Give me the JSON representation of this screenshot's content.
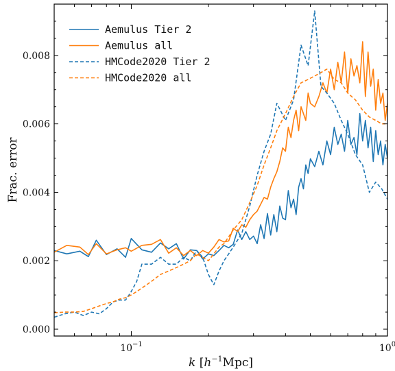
{
  "colors": {
    "blue": "#1f77b4",
    "orange": "#ff7f0e",
    "axis": "#000000"
  },
  "chart_data": {
    "type": "line",
    "title": "",
    "xlabel": "k [h^-1 Mpc]",
    "xlabel_parts": {
      "k": "k",
      "open": " [",
      "h": "h",
      "exp": "−1",
      "unit": "Mpc]"
    },
    "ylabel": "Frac. error",
    "xscale": "log",
    "xlim": [
      0.05,
      1.0
    ],
    "ylim": [
      -0.0002,
      0.0095
    ],
    "xtick_labels": [
      {
        "value": 0.1,
        "base": "10",
        "exp": "−1"
      },
      {
        "value": 1.0,
        "base": "10",
        "exp": "0"
      }
    ],
    "yticks": [
      0.0,
      0.002,
      0.004,
      0.006,
      0.008
    ],
    "ytick_labels": [
      "0.000",
      "0.002",
      "0.004",
      "0.006",
      "0.008"
    ],
    "legend_position": "top-left",
    "series": [
      {
        "name": "Aemulus Tier 2",
        "color": "#1f77b4",
        "dash": "solid",
        "x": [
          0.05,
          0.056,
          0.063,
          0.068,
          0.073,
          0.08,
          0.088,
          0.095,
          0.1,
          0.11,
          0.12,
          0.13,
          0.14,
          0.15,
          0.16,
          0.17,
          0.18,
          0.19,
          0.2,
          0.21,
          0.22,
          0.23,
          0.24,
          0.25,
          0.26,
          0.27,
          0.28,
          0.29,
          0.3,
          0.31,
          0.32,
          0.33,
          0.34,
          0.35,
          0.36,
          0.37,
          0.38,
          0.39,
          0.4,
          0.41,
          0.42,
          0.43,
          0.44,
          0.45,
          0.46,
          0.47,
          0.48,
          0.49,
          0.5,
          0.52,
          0.54,
          0.56,
          0.58,
          0.6,
          0.62,
          0.64,
          0.66,
          0.68,
          0.7,
          0.72,
          0.74,
          0.76,
          0.78,
          0.8,
          0.82,
          0.84,
          0.86,
          0.88,
          0.9,
          0.92,
          0.94,
          0.96,
          0.98,
          1.0
        ],
        "y": [
          0.0023,
          0.0022,
          0.00228,
          0.00212,
          0.0026,
          0.00218,
          0.00235,
          0.0021,
          0.00265,
          0.00232,
          0.00225,
          0.00252,
          0.00235,
          0.0025,
          0.00205,
          0.00232,
          0.0023,
          0.00205,
          0.0022,
          0.00215,
          0.0023,
          0.00245,
          0.00238,
          0.00248,
          0.0029,
          0.00262,
          0.00285,
          0.00262,
          0.00272,
          0.0025,
          0.00305,
          0.00265,
          0.00338,
          0.00275,
          0.00335,
          0.00285,
          0.0036,
          0.00325,
          0.0032,
          0.00405,
          0.00355,
          0.0038,
          0.00335,
          0.00415,
          0.0044,
          0.0041,
          0.0048,
          0.00455,
          0.00498,
          0.00475,
          0.0052,
          0.0048,
          0.0055,
          0.0051,
          0.0059,
          0.0054,
          0.0057,
          0.0052,
          0.0061,
          0.0054,
          0.0056,
          0.0051,
          0.0063,
          0.0055,
          0.0061,
          0.0053,
          0.0059,
          0.0049,
          0.0058,
          0.0051,
          0.0055,
          0.0048,
          0.0054,
          0.005
        ]
      },
      {
        "name": "Aemulus all",
        "color": "#ff7f0e",
        "dash": "solid",
        "x": [
          0.05,
          0.056,
          0.063,
          0.068,
          0.073,
          0.08,
          0.088,
          0.095,
          0.1,
          0.11,
          0.12,
          0.13,
          0.14,
          0.15,
          0.16,
          0.17,
          0.18,
          0.19,
          0.2,
          0.21,
          0.22,
          0.23,
          0.24,
          0.25,
          0.26,
          0.27,
          0.28,
          0.29,
          0.3,
          0.31,
          0.32,
          0.33,
          0.34,
          0.35,
          0.36,
          0.37,
          0.38,
          0.39,
          0.4,
          0.41,
          0.42,
          0.43,
          0.44,
          0.45,
          0.46,
          0.47,
          0.48,
          0.49,
          0.5,
          0.52,
          0.54,
          0.56,
          0.58,
          0.6,
          0.62,
          0.64,
          0.66,
          0.68,
          0.7,
          0.72,
          0.74,
          0.76,
          0.78,
          0.8,
          0.82,
          0.84,
          0.86,
          0.88,
          0.9,
          0.92,
          0.94,
          0.96,
          0.98,
          1.0
        ],
        "y": [
          0.00225,
          0.00245,
          0.0024,
          0.00218,
          0.0025,
          0.0022,
          0.00232,
          0.00238,
          0.00228,
          0.00245,
          0.00248,
          0.00262,
          0.00222,
          0.00238,
          0.00215,
          0.0023,
          0.00215,
          0.0023,
          0.00222,
          0.0024,
          0.00262,
          0.00255,
          0.00258,
          0.00295,
          0.00285,
          0.00305,
          0.00298,
          0.0032,
          0.00335,
          0.00345,
          0.00365,
          0.00385,
          0.0038,
          0.00415,
          0.0044,
          0.0046,
          0.0049,
          0.0053,
          0.0052,
          0.0059,
          0.0056,
          0.0061,
          0.0064,
          0.0058,
          0.0065,
          0.0063,
          0.0061,
          0.0069,
          0.0066,
          0.0065,
          0.0068,
          0.0072,
          0.0069,
          0.0076,
          0.007,
          0.0078,
          0.0072,
          0.0081,
          0.0069,
          0.0079,
          0.0074,
          0.0077,
          0.0072,
          0.0084,
          0.0068,
          0.0081,
          0.0071,
          0.0076,
          0.0064,
          0.0073,
          0.0066,
          0.0069,
          0.0061,
          0.0066
        ]
      },
      {
        "name": "HMCode2020 Tier 2",
        "color": "#1f77b4",
        "dash": "dashed",
        "x": [
          0.05,
          0.055,
          0.06,
          0.065,
          0.07,
          0.075,
          0.08,
          0.085,
          0.09,
          0.095,
          0.1,
          0.105,
          0.11,
          0.12,
          0.13,
          0.14,
          0.15,
          0.16,
          0.17,
          0.18,
          0.19,
          0.2,
          0.21,
          0.22,
          0.23,
          0.24,
          0.25,
          0.27,
          0.29,
          0.31,
          0.33,
          0.35,
          0.37,
          0.4,
          0.43,
          0.46,
          0.49,
          0.52,
          0.55,
          0.58,
          0.62,
          0.66,
          0.7,
          0.75,
          0.8,
          0.85,
          0.9,
          0.95,
          1.0
        ],
        "y": [
          0.00035,
          0.00045,
          0.0005,
          0.0004,
          0.0005,
          0.00045,
          0.0006,
          0.0008,
          0.00085,
          0.00085,
          0.0011,
          0.0014,
          0.0019,
          0.0019,
          0.0021,
          0.0019,
          0.0019,
          0.0021,
          0.002,
          0.0023,
          0.0021,
          0.0016,
          0.0013,
          0.0017,
          0.002,
          0.0022,
          0.0024,
          0.0028,
          0.0036,
          0.0045,
          0.0052,
          0.0057,
          0.0066,
          0.0061,
          0.0067,
          0.0083,
          0.0077,
          0.0093,
          0.0071,
          0.0069,
          0.0066,
          0.0061,
          0.0057,
          0.0051,
          0.0048,
          0.004,
          0.0043,
          0.0041,
          0.0038
        ]
      },
      {
        "name": "HMCode2020 all",
        "color": "#ff7f0e",
        "dash": "dashed",
        "x": [
          0.05,
          0.055,
          0.06,
          0.065,
          0.07,
          0.075,
          0.08,
          0.085,
          0.09,
          0.095,
          0.1,
          0.105,
          0.11,
          0.12,
          0.13,
          0.14,
          0.15,
          0.16,
          0.17,
          0.18,
          0.19,
          0.2,
          0.21,
          0.22,
          0.23,
          0.24,
          0.25,
          0.27,
          0.29,
          0.31,
          0.33,
          0.35,
          0.37,
          0.4,
          0.43,
          0.46,
          0.49,
          0.52,
          0.55,
          0.58,
          0.62,
          0.66,
          0.7,
          0.75,
          0.8,
          0.85,
          0.9,
          0.95,
          1.0
        ],
        "y": [
          0.00048,
          0.0005,
          0.0005,
          0.00052,
          0.0006,
          0.00068,
          0.00075,
          0.0008,
          0.00088,
          0.00092,
          0.001,
          0.0011,
          0.0012,
          0.0014,
          0.0016,
          0.0017,
          0.0018,
          0.0019,
          0.002,
          0.0022,
          0.0021,
          0.002,
          0.0022,
          0.0024,
          0.0025,
          0.0027,
          0.0029,
          0.0032,
          0.0037,
          0.0042,
          0.0048,
          0.0053,
          0.0058,
          0.0063,
          0.0068,
          0.0072,
          0.0073,
          0.0074,
          0.0075,
          0.0076,
          0.0073,
          0.0072,
          0.0069,
          0.0067,
          0.0064,
          0.0062,
          0.0061,
          0.006,
          0.006
        ]
      }
    ]
  }
}
